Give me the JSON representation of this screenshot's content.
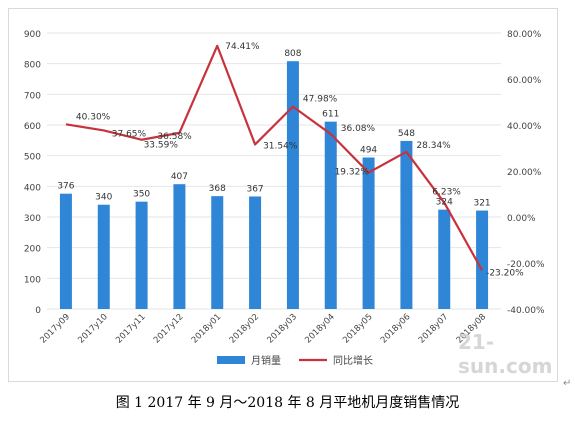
{
  "chart_data": {
    "type": "bar+line",
    "categories": [
      "2017y09",
      "2017y10",
      "2017y11",
      "2017y12",
      "2018y01",
      "2018y02",
      "2018y03",
      "2018y04",
      "2018y05",
      "2018y06",
      "2018y07",
      "2018y08"
    ],
    "bar_series": {
      "name": "月销量",
      "values": [
        376,
        340,
        350,
        407,
        368,
        367,
        808,
        611,
        494,
        548,
        324,
        321
      ],
      "labels": [
        "376",
        "340",
        "350",
        "407",
        "368",
        "367",
        "808",
        "611",
        "494",
        "548",
        "324",
        "321"
      ]
    },
    "line_series": {
      "name": "同比增长",
      "values": [
        40.3,
        37.65,
        33.59,
        36.58,
        74.41,
        31.54,
        47.98,
        36.08,
        19.32,
        28.34,
        6.23,
        -23.2
      ],
      "labels": [
        "40.30%",
        "37.65%",
        "33.59%",
        "36.58%",
        "74.41%",
        "31.54%",
        "47.98%",
        "36.08%",
        "19.32%",
        "28.34%",
        "6.23%",
        "-23.20%"
      ]
    },
    "left_axis": {
      "min": 0,
      "max": 900,
      "ticks": [
        "0",
        "100",
        "200",
        "300",
        "400",
        "500",
        "600",
        "700",
        "800",
        "900"
      ]
    },
    "right_axis": {
      "min": -40,
      "max": 80,
      "ticks": [
        "-40.00%",
        "-20.00%",
        "0.00%",
        "20.00%",
        "40.00%",
        "60.00%",
        "80.00%"
      ]
    },
    "colors": {
      "bar": "#2f86d6",
      "line": "#c8323c",
      "grid": "#e6e6e6",
      "text": "#444444"
    },
    "grid": true,
    "legend_position": "bottom"
  },
  "watermark": "21-sun.com",
  "caption": "图 1   2017 年 9 月～2018 年 8 月平地机月度销售情况",
  "return_mark": "↵"
}
